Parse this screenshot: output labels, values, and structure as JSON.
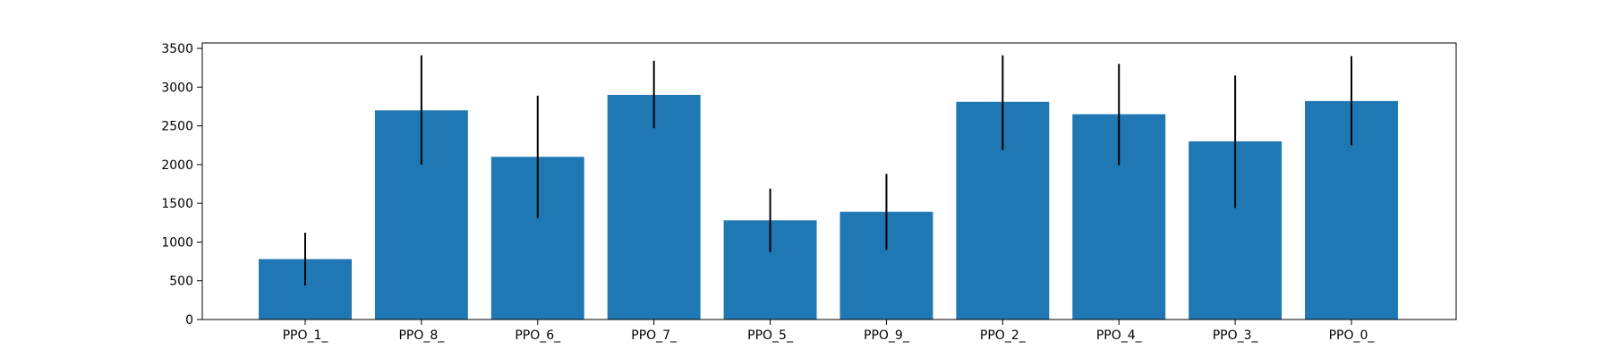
{
  "chart_data": {
    "type": "bar",
    "categories": [
      "PPO_1_",
      "PPO_8_",
      "PPO_6_",
      "PPO_7_",
      "PPO_5_",
      "PPO_9_",
      "PPO_2_",
      "PPO_4_",
      "PPO_3_",
      "PPO_0_"
    ],
    "values": [
      780,
      2700,
      2100,
      2900,
      1280,
      1390,
      2810,
      2650,
      2300,
      2820
    ],
    "error_bars": [
      [
        440,
        1120
      ],
      [
        2000,
        3410
      ],
      [
        1310,
        2890
      ],
      [
        2470,
        3340
      ],
      [
        870,
        1690
      ],
      [
        900,
        1880
      ],
      [
        2190,
        3410
      ],
      [
        1990,
        3300
      ],
      [
        1440,
        3150
      ],
      [
        2250,
        3400
      ]
    ],
    "title": "",
    "xlabel": "",
    "ylabel": "",
    "ylim": [
      0,
      3570
    ],
    "yticks": [
      0,
      500,
      1000,
      1500,
      2000,
      2500,
      3000,
      3500
    ],
    "grid": false,
    "legend": "none",
    "colors": {
      "bar": "#1f77b4",
      "error": "#000000",
      "axis": "#000000",
      "text": "#000000"
    }
  }
}
